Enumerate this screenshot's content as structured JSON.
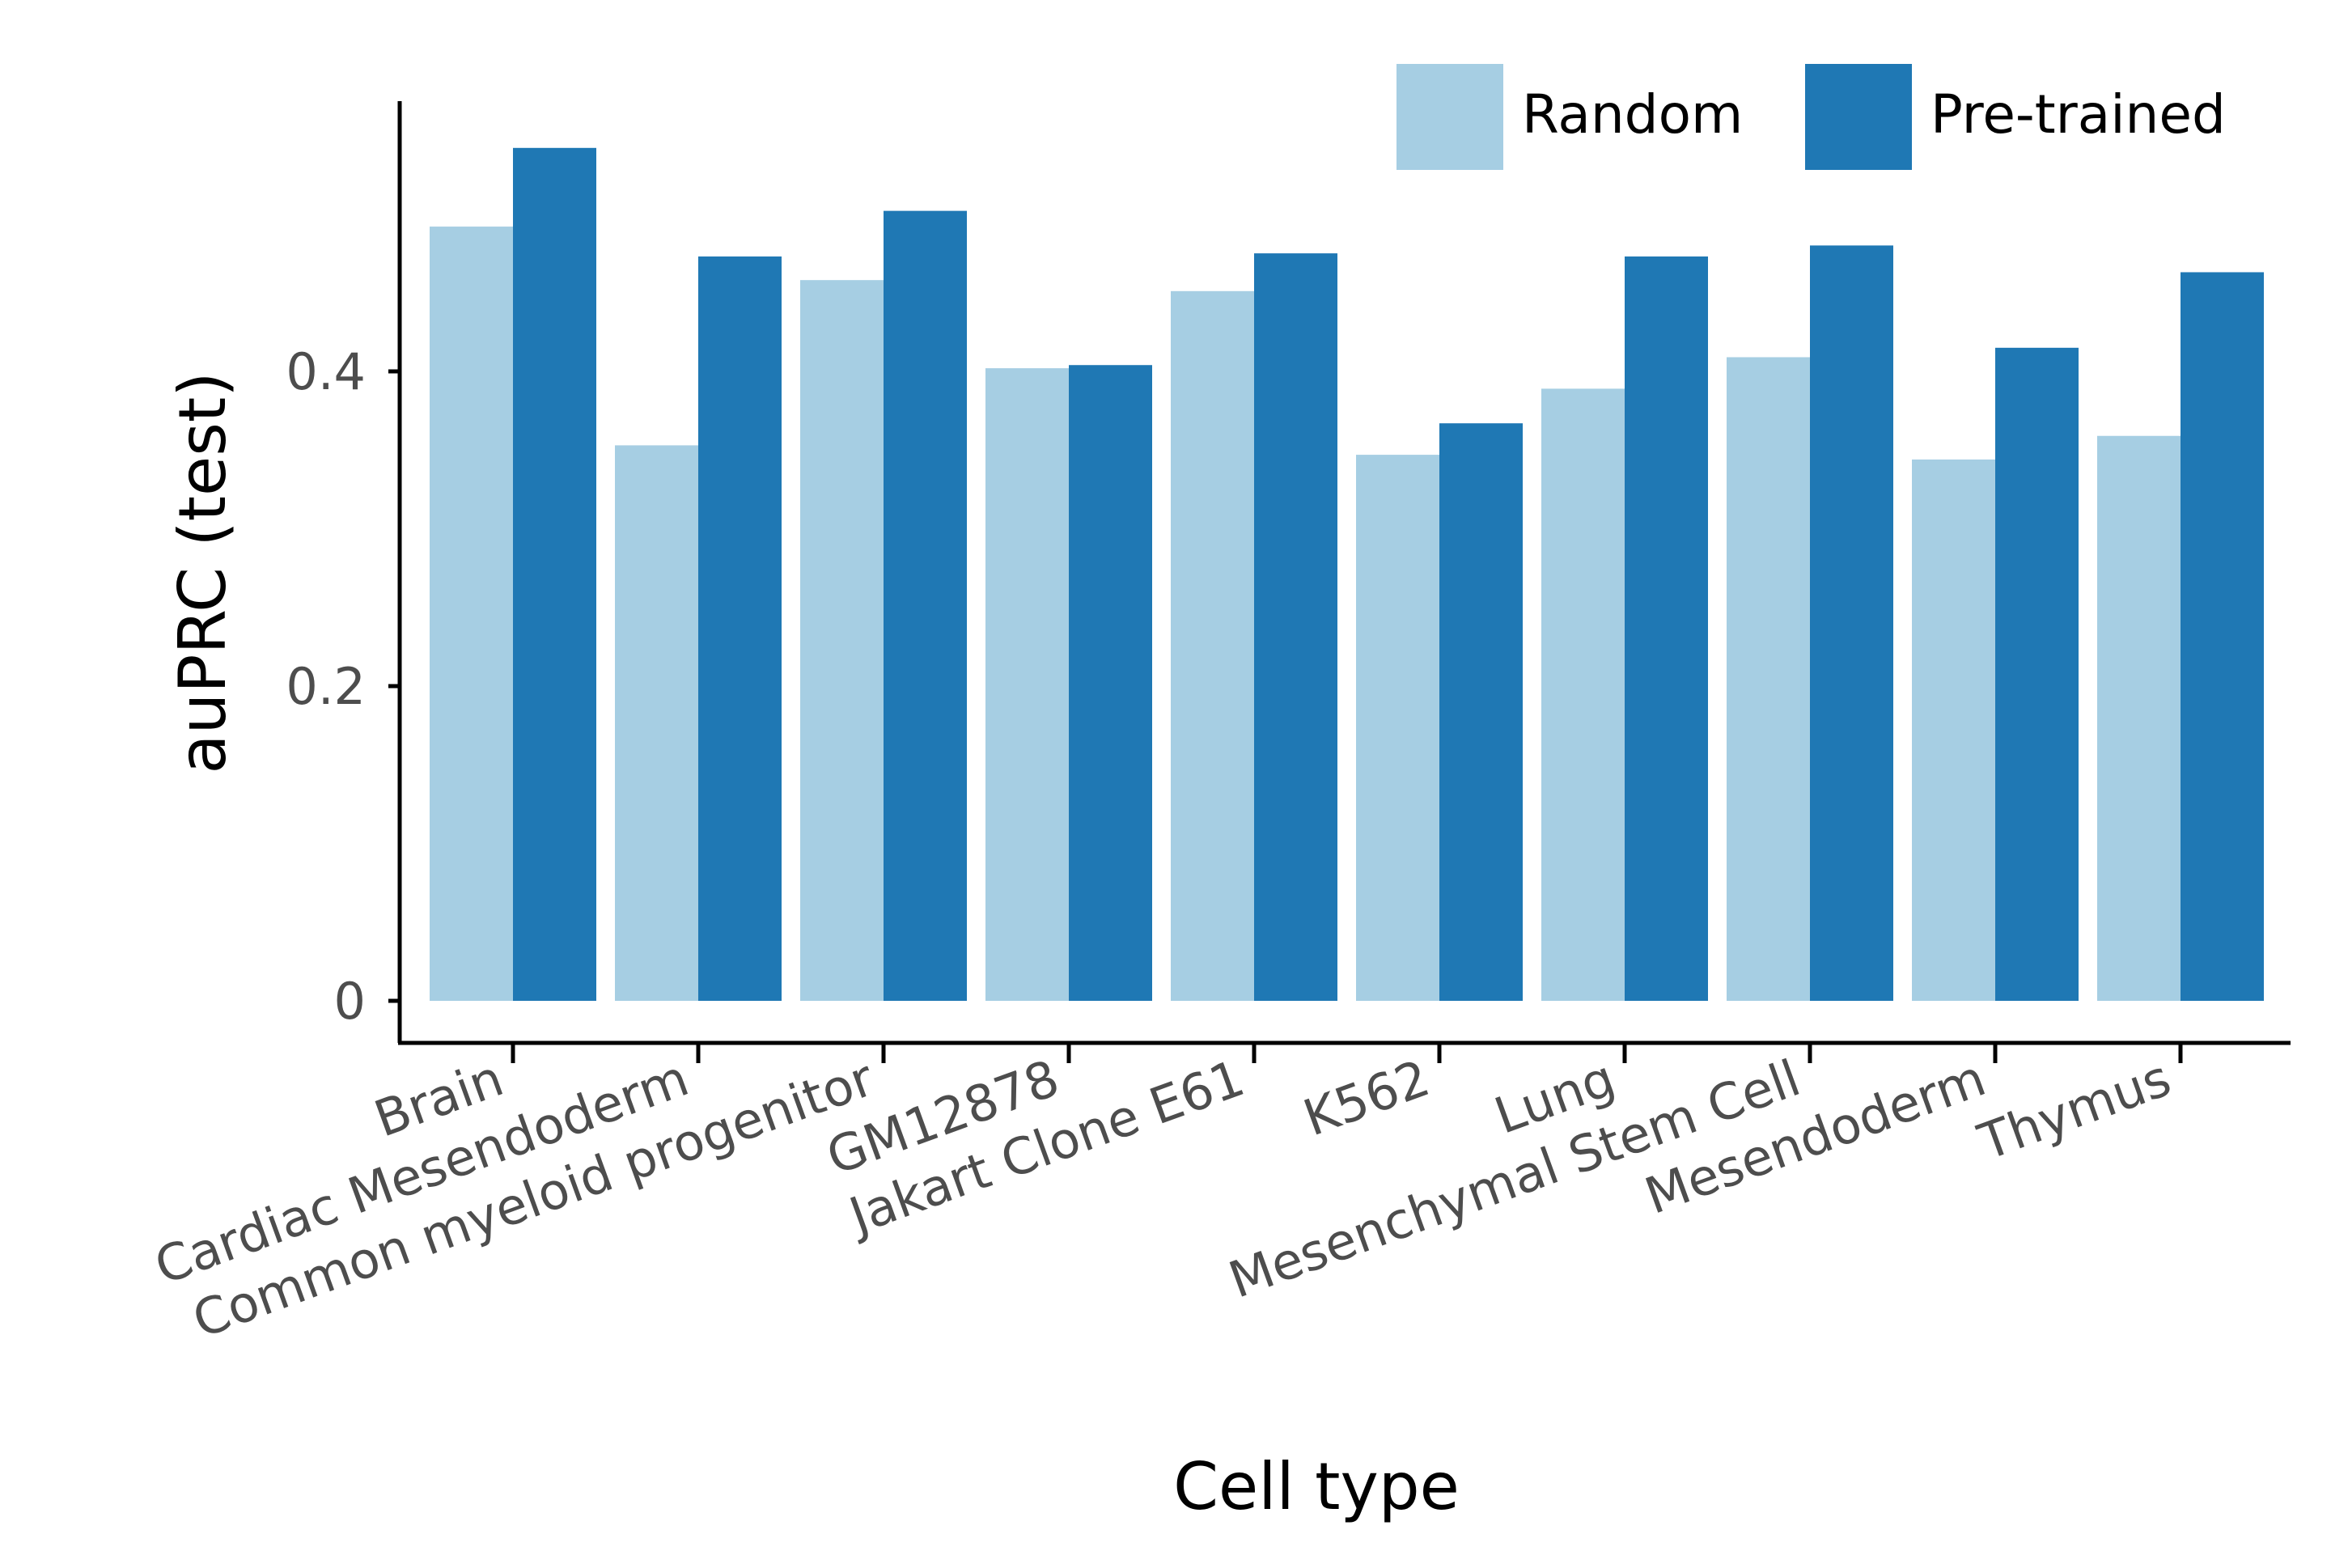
{
  "chart_data": {
    "type": "bar",
    "xlabel": "Cell type",
    "ylabel": "auPRC (test)",
    "categories": [
      "Brain",
      "Cardiac Mesendoderm",
      "Common myeloid progenitor",
      "GM12878",
      "Jakart Clone E61",
      "K562",
      "Lung",
      "Mesenchymal Stem Cell",
      "Mesendoderm",
      "Thymus"
    ],
    "series": [
      {
        "name": "Random",
        "color": "#a6cee3",
        "values": [
          0.492,
          0.353,
          0.458,
          0.402,
          0.451,
          0.347,
          0.389,
          0.409,
          0.344,
          0.359
        ]
      },
      {
        "name": "Pre-trained",
        "color": "#1f78b4",
        "values": [
          0.542,
          0.473,
          0.502,
          0.404,
          0.475,
          0.367,
          0.473,
          0.48,
          0.415,
          0.463
        ]
      }
    ],
    "yticks": [
      0,
      0.2,
      0.4
    ],
    "ytick_labels": [
      "0",
      "0.2",
      "0.4"
    ],
    "ylim": [
      -0.026,
      0.57
    ],
    "grid": false,
    "legend_position": "top-right"
  }
}
